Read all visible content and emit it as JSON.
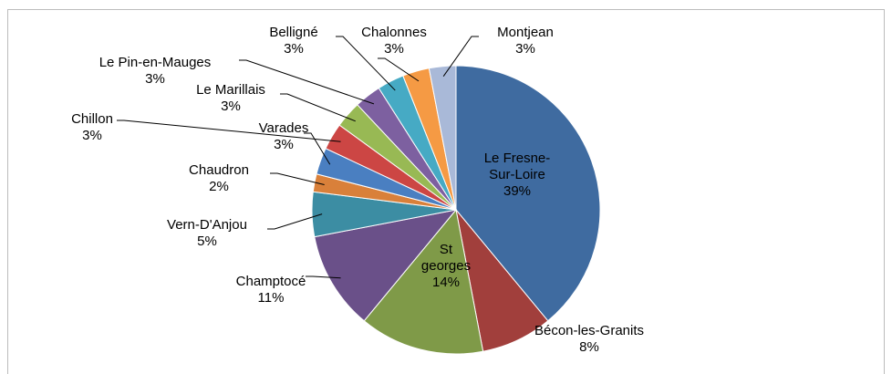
{
  "chart_data": {
    "type": "pie",
    "categories": [
      "Le Fresne-Sur-Loire",
      "Bécon-les-Granits",
      "St georges",
      "Champtocé",
      "Vern-D'Anjou",
      "Chaudron",
      "Varades",
      "Chillon",
      "Le Marillais",
      "Le Pin-en-Mauges",
      "Belligné",
      "Chalonnes",
      "Montjean"
    ],
    "values": [
      39,
      8,
      14,
      11,
      5,
      2,
      3,
      3,
      3,
      3,
      3,
      3,
      3
    ],
    "value_labels": [
      "39%",
      "8%",
      "14%",
      "11%",
      "5%",
      "2%",
      "3%",
      "3%",
      "3%",
      "3%",
      "3%",
      "3%",
      "3%"
    ],
    "colors": [
      "#3f6ba0",
      "#a13f3c",
      "#7f9a48",
      "#6a5089",
      "#3c8da3",
      "#d9803a",
      "#4a7fc1",
      "#cc4644",
      "#98b954",
      "#7d60a0",
      "#46aac4",
      "#f59a44",
      "#a9b9d8"
    ]
  }
}
